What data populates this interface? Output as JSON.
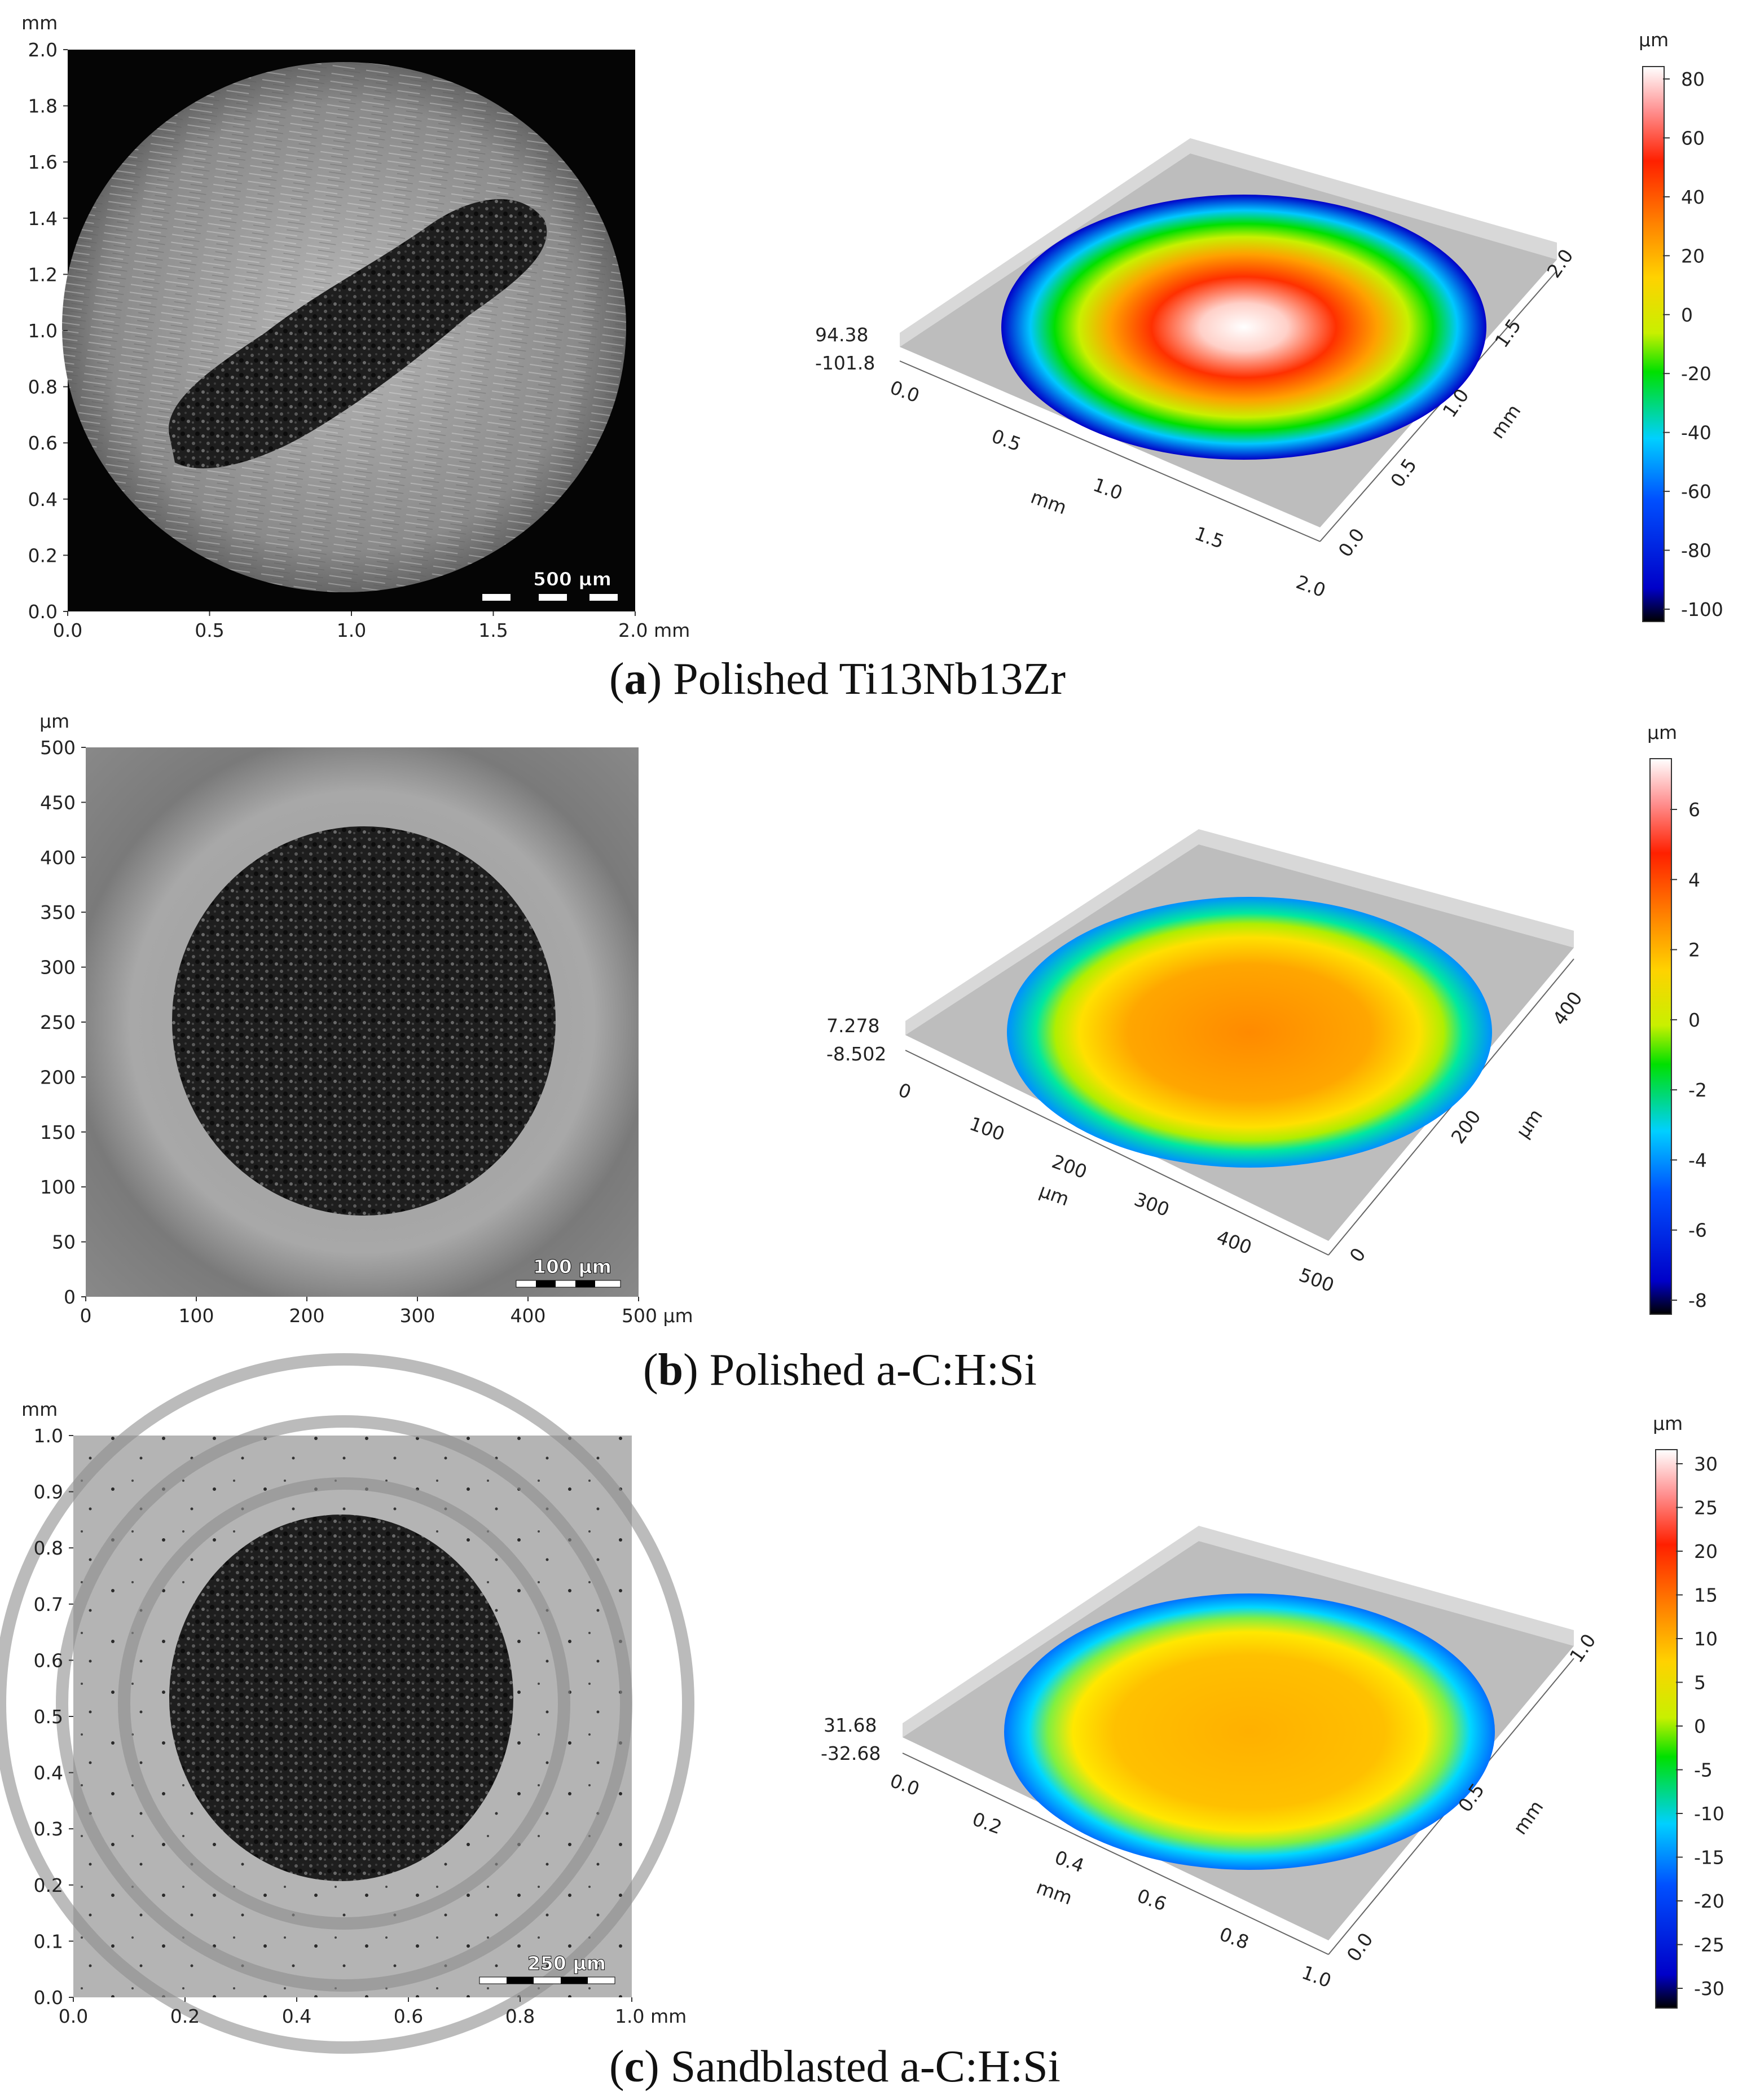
{
  "figure": {
    "panels": [
      {
        "id": "a",
        "caption_letter": "a",
        "caption_text": "Polished Ti13Nb13Zr",
        "micrograph": {
          "unit_label": "mm",
          "x_ticks": [
            "0.0",
            "0.5",
            "1.0",
            "1.5",
            "2.0 mm"
          ],
          "y_ticks": [
            "0.0",
            "0.2",
            "0.4",
            "0.6",
            "0.8",
            "1.0",
            "1.2",
            "1.4",
            "1.6",
            "1.8",
            "2.0"
          ],
          "scale_bar_label": "500 µm",
          "wear_scar": "elongated dark scar"
        },
        "view3d": {
          "z_max_label": "94.38",
          "z_min_label": "-101.8",
          "x_ticks": [
            "0.0",
            "0.5",
            "1.0",
            "1.5",
            "2.0"
          ],
          "y_ticks": [
            "0.0",
            "0.5",
            "1.0",
            "1.5",
            "2.0"
          ],
          "x_unit": "mm",
          "y_unit": "mm"
        },
        "colorbar": {
          "unit": "µm",
          "ticks": [
            "80",
            "60",
            "40",
            "20",
            "0",
            "-20",
            "-40",
            "-60",
            "-80",
            "-100"
          ]
        }
      },
      {
        "id": "b",
        "caption_letter": "b",
        "caption_text": "Polished a-C:H:Si",
        "micrograph": {
          "unit_label": "µm",
          "x_ticks": [
            "0",
            "100",
            "200",
            "300",
            "400",
            "500 µm"
          ],
          "y_ticks": [
            "0",
            "50",
            "100",
            "150",
            "200",
            "250",
            "300",
            "350",
            "400",
            "450",
            "500"
          ],
          "scale_bar_label": "100 µm",
          "wear_scar": "round dark scar"
        },
        "view3d": {
          "z_max_label": "7.278",
          "z_min_label": "-8.502",
          "x_ticks": [
            "0",
            "100",
            "200",
            "300",
            "400",
            "500"
          ],
          "y_ticks": [
            "0",
            "200",
            "400"
          ],
          "x_unit": "µm",
          "y_unit": "µm"
        },
        "colorbar": {
          "unit": "µm",
          "ticks": [
            "6",
            "4",
            "2",
            "0",
            "-2",
            "-4",
            "-6",
            "-8"
          ]
        }
      },
      {
        "id": "c",
        "caption_letter": "c",
        "caption_text": "Sandblasted a-C:H:Si",
        "micrograph": {
          "unit_label": "mm",
          "x_ticks": [
            "0.0",
            "0.2",
            "0.4",
            "0.6",
            "0.8",
            "1.0 mm"
          ],
          "y_ticks": [
            "0.0",
            "0.1",
            "0.2",
            "0.3",
            "0.4",
            "0.5",
            "0.6",
            "0.7",
            "0.8",
            "0.9",
            "1.0"
          ],
          "scale_bar_label": "250 µm",
          "wear_scar": "round dark scar with concentric rings"
        },
        "view3d": {
          "z_max_label": "31.68",
          "z_min_label": "-32.68",
          "x_ticks": [
            "0.0",
            "0.2",
            "0.4",
            "0.6",
            "0.8",
            "1.0"
          ],
          "y_ticks": [
            "0.0",
            "0.5",
            "1.0"
          ],
          "x_unit": "mm",
          "y_unit": "mm"
        },
        "colorbar": {
          "unit": "µm",
          "ticks": [
            "30",
            "25",
            "20",
            "15",
            "10",
            "5",
            "0",
            "-5",
            "-10",
            "-15",
            "-20",
            "-25",
            "-30"
          ]
        }
      }
    ],
    "colormap": [
      "#000000",
      "#0000ff",
      "#00c8ff",
      "#00e000",
      "#ffe000",
      "#ff8000",
      "#ff2000",
      "#ffffff"
    ]
  }
}
